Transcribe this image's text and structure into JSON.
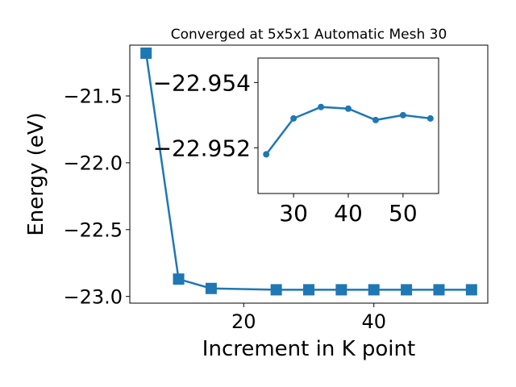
{
  "chart_data": [
    {
      "type": "line",
      "title": "Converged at 5x5x1 Automatic Mesh 30",
      "xlabel": "Increment in K point",
      "ylabel": "Energy (eV)",
      "xlim": [
        2.5,
        57.5
      ],
      "ylim": [
        -23.05,
        -21.12
      ],
      "x_ticks": [
        20,
        40
      ],
      "x_tick_labels": [
        "20",
        "40"
      ],
      "y_ticks": [
        -21.5,
        -22.0,
        -22.5,
        -23.0
      ],
      "y_tick_labels": [
        "−21.5",
        "−22.0",
        "−22.5",
        "−23.0"
      ],
      "grid": false,
      "marker": "square",
      "color": "#1f77b4",
      "series": [
        {
          "x": [
            5,
            10,
            15,
            25,
            30,
            35,
            40,
            45,
            50,
            55
          ],
          "y": [
            -21.18,
            -22.87,
            -22.94,
            -22.95,
            -22.95,
            -22.95,
            -22.95,
            -22.95,
            -22.95,
            -22.95
          ]
        }
      ]
    },
    {
      "type": "line",
      "role": "inset",
      "xlim": [
        23.5,
        56.5
      ],
      "ylim": [
        -22.9506,
        -22.95475
      ],
      "x_ticks": [
        30,
        40,
        50
      ],
      "x_tick_labels": [
        "30",
        "40",
        "50"
      ],
      "y_ticks": [
        -22.954,
        -22.952
      ],
      "y_tick_labels": [
        "−22.954",
        "−22.952"
      ],
      "grid": false,
      "marker": "circle",
      "color": "#1f77b4",
      "series": [
        {
          "x": [
            25,
            30,
            35,
            40,
            45,
            50,
            55
          ],
          "y": [
            -22.9518,
            -22.9529,
            -22.95325,
            -22.9532,
            -22.95285,
            -22.953,
            -22.9529
          ]
        }
      ]
    }
  ]
}
